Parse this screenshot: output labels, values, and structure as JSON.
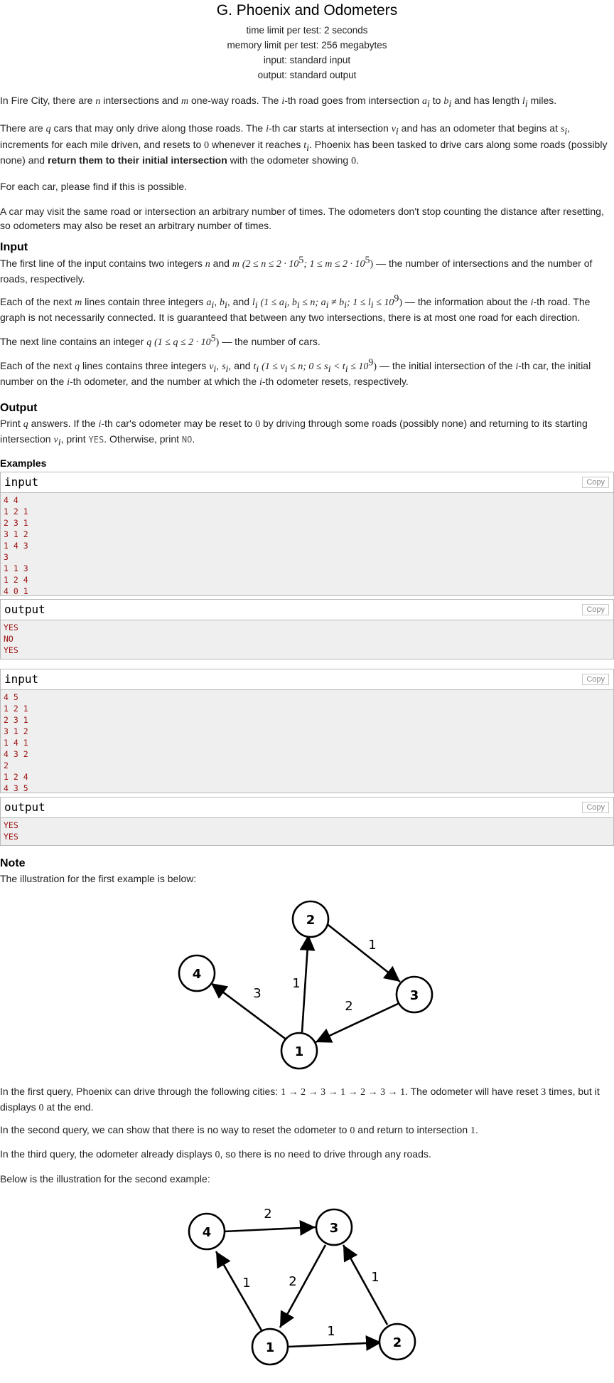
{
  "header": {
    "title": "G. Phoenix and Odometers",
    "time_limit": "time limit per test: 2 seconds",
    "memory_limit": "memory limit per test: 256 megabytes",
    "input": "input: standard input",
    "output": "output: standard output"
  },
  "legend": {
    "p1_a": "In Fire City, there are ",
    "p1_b": " intersections and ",
    "p1_c": " one-way roads. The ",
    "p1_d": "-th road goes from intersection ",
    "p1_e": " to ",
    "p1_f": " and has length ",
    "p1_g": " miles.",
    "p2_a": "There are ",
    "p2_b": " cars that may only drive along those roads. The ",
    "p2_c": "-th car starts at intersection ",
    "p2_d": " and has an odometer that begins at ",
    "p2_e": ", increments for each mile driven, and resets to ",
    "p2_f": " whenever it reaches ",
    "p2_g": ". Phoenix has been tasked to drive cars along some roads (possibly none) and ",
    "p2_bold": "return them to their initial intersection",
    "p2_h": " with the odometer showing ",
    "p2_i": ".",
    "p3": "For each car, please find if this is possible.",
    "p4": "A car may visit the same road or intersection an arbitrary number of times. The odometers don't stop counting the distance after resetting, so odometers may also be reset an arbitrary number of times."
  },
  "input_spec": {
    "heading": "Input",
    "l1_a": "The first line of the input contains two integers ",
    "l1_b": " and ",
    "l1_c": " — the number of intersections and the number of roads, respectively.",
    "l2_a": "Each of the next ",
    "l2_b": " lines contain three integers ",
    "l2_c": ", and ",
    "l2_d": " — the information about the ",
    "l2_e": "-th road. The graph is not necessarily connected. It is guaranteed that between any two intersections, there is at most one road for each direction.",
    "l3_a": "The next line contains an integer ",
    "l3_b": " — the number of cars.",
    "l4_a": "Each of the next ",
    "l4_b": " lines contains three integers ",
    "l4_c": ", and ",
    "l4_d": " — the initial intersection of the ",
    "l4_e": "-th car, the initial number on the ",
    "l4_f": "-th odometer, and the number at which the ",
    "l4_g": "-th odometer resets, respectively."
  },
  "output_spec": {
    "heading": "Output",
    "a": "Print ",
    "b": " answers. If the ",
    "c": "-th car's odometer may be reset to ",
    "d": " by driving through some roads (possibly none) and returning to its starting intersection ",
    "e": ", print ",
    "yes": "YES",
    "f": ". Otherwise, print ",
    "no": "NO",
    "g": "."
  },
  "examples": {
    "heading": "Examples",
    "input_label": "input",
    "output_label": "output",
    "copy_label": "Copy",
    "ex1_input": "4 4\n1 2 1\n2 3 1\n3 1 2\n1 4 3\n3\n1 1 3\n1 2 4\n4 0 1",
    "ex1_output": "YES\nNO\nYES",
    "ex2_input": "4 5\n1 2 1\n2 3 1\n3 1 2\n1 4 1\n4 3 2\n2\n1 2 4\n4 3 5",
    "ex2_output": "YES\nYES"
  },
  "note": {
    "heading": "Note",
    "intro": "The illustration for the first example is below:",
    "q1_a": "In the first query, Phoenix can drive through the following cities: ",
    "q1_path": "1 → 2 → 3 → 1 → 2 → 3 → 1",
    "q1_b": ". The odometer will have reset ",
    "q1_c": " times, but it displays ",
    "q1_d": " at the end.",
    "q2_a": "In the second query, we can show that there is no way to reset the odometer to ",
    "q2_b": " and return to intersection ",
    "q2_c": ".",
    "q3_a": "In the third query, the odometer already displays ",
    "q3_b": ", so there is no need to drive through any roads.",
    "second_intro": "Below is the illustration for the second example:"
  },
  "math": {
    "n": "n",
    "m": "m",
    "i": "i",
    "q": "q",
    "a_i": "a",
    "b_i": "b",
    "l_i": "l",
    "v_i": "v",
    "s_i": "s",
    "t_i": "t",
    "sub_i": "i",
    "zero": "0",
    "one": "1",
    "three": "3",
    "c_nm": "(2 ≤ n ≤ 2 · 10",
    "c_nm2": "; 1 ≤ m ≤ 2 · 10",
    "sup5": "5",
    "sup9": "9",
    "close": ")",
    "c_road": "(1 ≤ a",
    "c_road2": ", b",
    "c_road3": " ≤ n; a",
    "c_road4": " ≠ b",
    "c_road5": "; 1 ≤ l",
    "c_road6": " ≤ 10",
    "c_q": "(1 ≤ q ≤ 2 · 10",
    "c_car": "(1 ≤ v",
    "c_car2": " ≤ n; 0 ≤ s",
    "c_car3": " < t",
    "c_car4": " ≤ 10",
    "comma": ", "
  },
  "graph1": {
    "nodes": [
      "1",
      "2",
      "3",
      "4"
    ],
    "edges": [
      {
        "from": "1",
        "to": "2",
        "label": "1"
      },
      {
        "from": "2",
        "to": "3",
        "label": "1"
      },
      {
        "from": "3",
        "to": "1",
        "label": "2"
      },
      {
        "from": "1",
        "to": "4",
        "label": "3"
      }
    ]
  },
  "graph2": {
    "nodes": [
      "1",
      "2",
      "3",
      "4"
    ],
    "edges": [
      {
        "from": "1",
        "to": "2",
        "label": "1"
      },
      {
        "from": "2",
        "to": "3",
        "label": "1"
      },
      {
        "from": "3",
        "to": "1",
        "label": "2"
      },
      {
        "from": "1",
        "to": "4",
        "label": "1"
      },
      {
        "from": "4",
        "to": "3",
        "label": "2"
      }
    ]
  }
}
